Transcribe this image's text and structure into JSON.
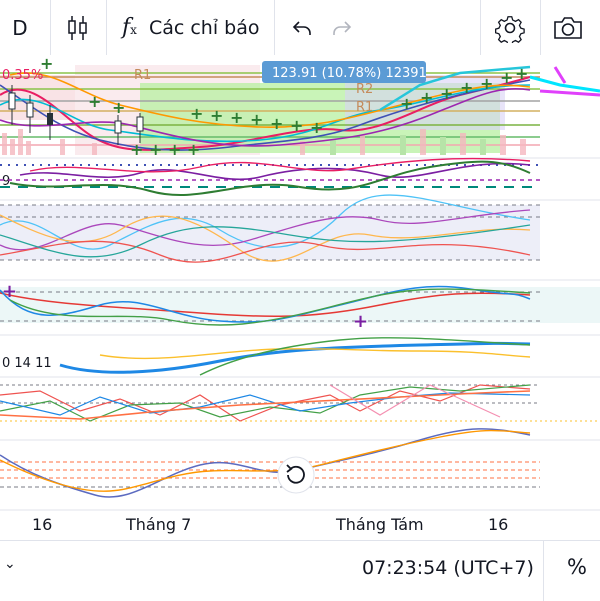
{
  "toolbar": {
    "interval": "D",
    "indicators_label": "Các chỉ báo"
  },
  "chart": {
    "price_badge": "123.91 (10.78%) 12391",
    "pivot_labels": [
      "R1",
      "R2",
      "R1"
    ],
    "left_label": "0.35%",
    "pane_labels": [
      "9",
      "0 14 11"
    ],
    "x_labels": [
      "16",
      "Tháng 7",
      "Tháng Tám",
      "16"
    ]
  },
  "status": {
    "time": "07:23:54 (UTC+7)",
    "percent_label": "%"
  },
  "icons": [
    "candles-icon",
    "fx-icon",
    "undo-icon",
    "redo-icon",
    "gear-icon",
    "camera-icon",
    "reset-icon",
    "chevron-down-icon"
  ]
}
